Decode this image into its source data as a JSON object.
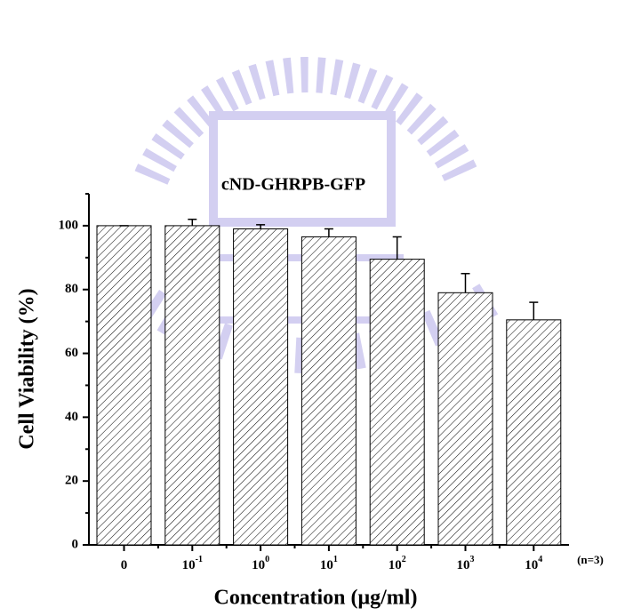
{
  "chart_data": {
    "type": "bar",
    "title": "cND-GHRPB-GFP",
    "x_label": "Concentration (μg/ml)",
    "y_label": "Cell Viability (%)",
    "annotation": "(n=3)",
    "categories": [
      {
        "text": "0"
      },
      {
        "text": "10",
        "sup": "-1"
      },
      {
        "text": "10",
        "sup": "0"
      },
      {
        "text": "10",
        "sup": "1"
      },
      {
        "text": "10",
        "sup": "2"
      },
      {
        "text": "10",
        "sup": "3"
      },
      {
        "text": "10",
        "sup": "4"
      }
    ],
    "values": [
      100,
      100,
      99,
      96.5,
      89.5,
      79,
      70.5
    ],
    "errors": [
      0,
      2,
      1.3,
      2.5,
      7,
      6,
      5.5
    ],
    "color": "#000000",
    "pattern": "hatch",
    "ylim": [
      0,
      110
    ],
    "yticks": [
      0,
      20,
      40,
      60,
      80,
      100
    ],
    "yminorticks": [
      10,
      30,
      50,
      70,
      90,
      110
    ],
    "grid": false
  }
}
